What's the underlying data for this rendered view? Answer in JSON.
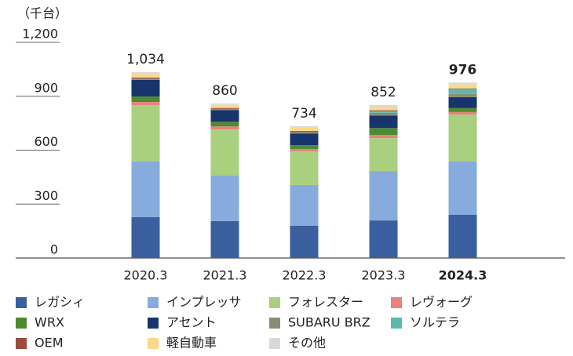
{
  "chart_data": {
    "type": "stacked_bar",
    "ylabel": "（千台）",
    "categories": [
      "2020.3",
      "2021.3",
      "2022.3",
      "2023.3",
      "2024.3"
    ],
    "highlight_index": 4,
    "series": [
      {
        "name": "レガシィ",
        "color": "#3a5f9e",
        "values": [
          227,
          205,
          179,
          209,
          240
        ]
      },
      {
        "name": "インプレッサ",
        "color": "#87abdc",
        "values": [
          310,
          253,
          227,
          275,
          297
        ]
      },
      {
        "name": "フォレスター",
        "color": "#a9d07f",
        "values": [
          314,
          257,
          187,
          183,
          262
        ]
      },
      {
        "name": "レヴォーグ",
        "color": "#e8827e",
        "values": [
          17,
          17,
          13,
          17,
          13
        ]
      },
      {
        "name": "WRX",
        "color": "#4e8a32",
        "values": [
          31,
          26,
          22,
          39,
          22
        ]
      },
      {
        "name": "アセント",
        "color": "#17356b",
        "values": [
          92,
          65,
          65,
          70,
          61
        ]
      },
      {
        "name": "SUBARU BRZ",
        "color": "#8c8c76",
        "values": [
          8,
          7,
          10,
          15,
          18
        ]
      },
      {
        "name": "ソルテラ",
        "color": "#5db8ae",
        "values": [
          0,
          0,
          0,
          10,
          28
        ]
      },
      {
        "name": "OEM",
        "color": "#9b4a3c",
        "values": [
          5,
          5,
          4,
          4,
          3
        ]
      },
      {
        "name": "軽自動車",
        "color": "#fbd98b",
        "values": [
          20,
          17,
          18,
          20,
          22
        ]
      },
      {
        "name": "その他",
        "color": "#d9d9d9",
        "values": [
          10,
          8,
          9,
          10,
          10
        ]
      }
    ],
    "totals": [
      1034,
      860,
      734,
      852,
      976
    ],
    "total_labels": [
      "1,034",
      "860",
      "734",
      "852",
      "976"
    ],
    "ylim": [
      0,
      1200
    ],
    "yticks": [
      0,
      300,
      600,
      900,
      {
        "value": 1200,
        "label": "1,200"
      }
    ]
  }
}
